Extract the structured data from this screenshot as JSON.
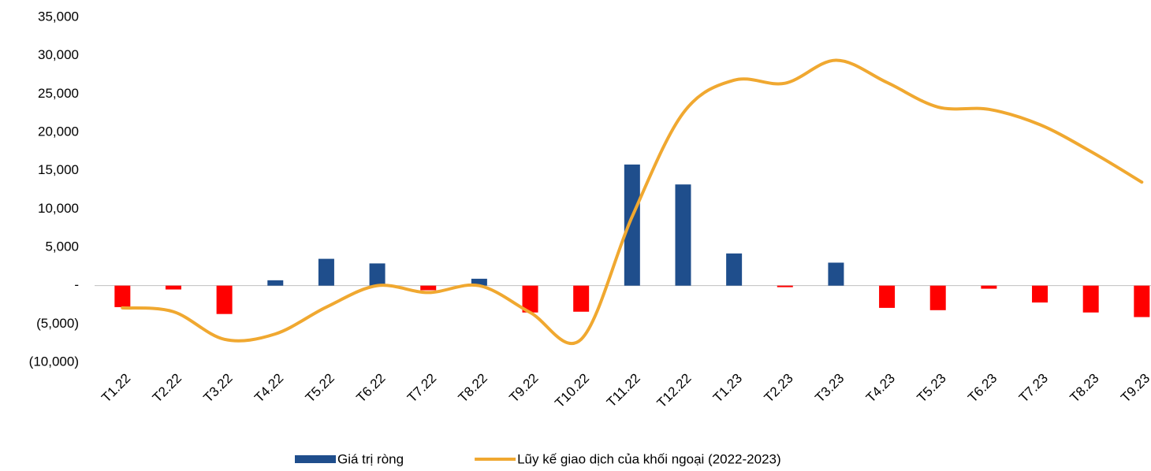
{
  "chart_data": {
    "type": "bar_line",
    "categories": [
      "T1.22",
      "T2.22",
      "T3.22",
      "T4.22",
      "T5.22",
      "T6.22",
      "T7.22",
      "T8.22",
      "T9.22",
      "T10.22",
      "T11.22",
      "T12.22",
      "T1.23",
      "T2.23",
      "T3.23",
      "T4.23",
      "T5.23",
      "T6.23",
      "T7.23",
      "T8.23",
      "T9.23"
    ],
    "series": [
      {
        "name": "Giá trị ròng",
        "type": "bar",
        "color": "#1f4e8c",
        "negative_color": "#ff0000",
        "values": [
          -2800,
          -500,
          -3700,
          700,
          3500,
          2900,
          -600,
          900,
          -3500,
          -3400,
          15800,
          13200,
          4200,
          -200,
          3000,
          -2900,
          -3200,
          -400,
          -2200,
          -3500,
          -4100
        ]
      },
      {
        "name": "Lũy kế giao dịch của khối ngoại (2022-2023)",
        "type": "line",
        "color": "#f0a830",
        "values": [
          -2900,
          -3400,
          -7000,
          -6300,
          -2800,
          0,
          -900,
          0,
          -3500,
          -7000,
          9000,
          22500,
          26800,
          26400,
          29400,
          26500,
          23300,
          23000,
          21000,
          17500,
          13500
        ]
      }
    ],
    "ylim": [
      -10000,
      35000
    ],
    "yticks": [
      {
        "value": -10000,
        "label": "(10,000)"
      },
      {
        "value": -5000,
        "label": "(5,000)"
      },
      {
        "value": 0,
        "label": "-"
      },
      {
        "value": 5000,
        "label": "5,000"
      },
      {
        "value": 10000,
        "label": "10,000"
      },
      {
        "value": 15000,
        "label": "15,000"
      },
      {
        "value": 20000,
        "label": "20,000"
      },
      {
        "value": 25000,
        "label": "25,000"
      },
      {
        "value": 30000,
        "label": "30,000"
      },
      {
        "value": 35000,
        "label": "35,000"
      }
    ],
    "grid": false,
    "legend": "bottom"
  }
}
